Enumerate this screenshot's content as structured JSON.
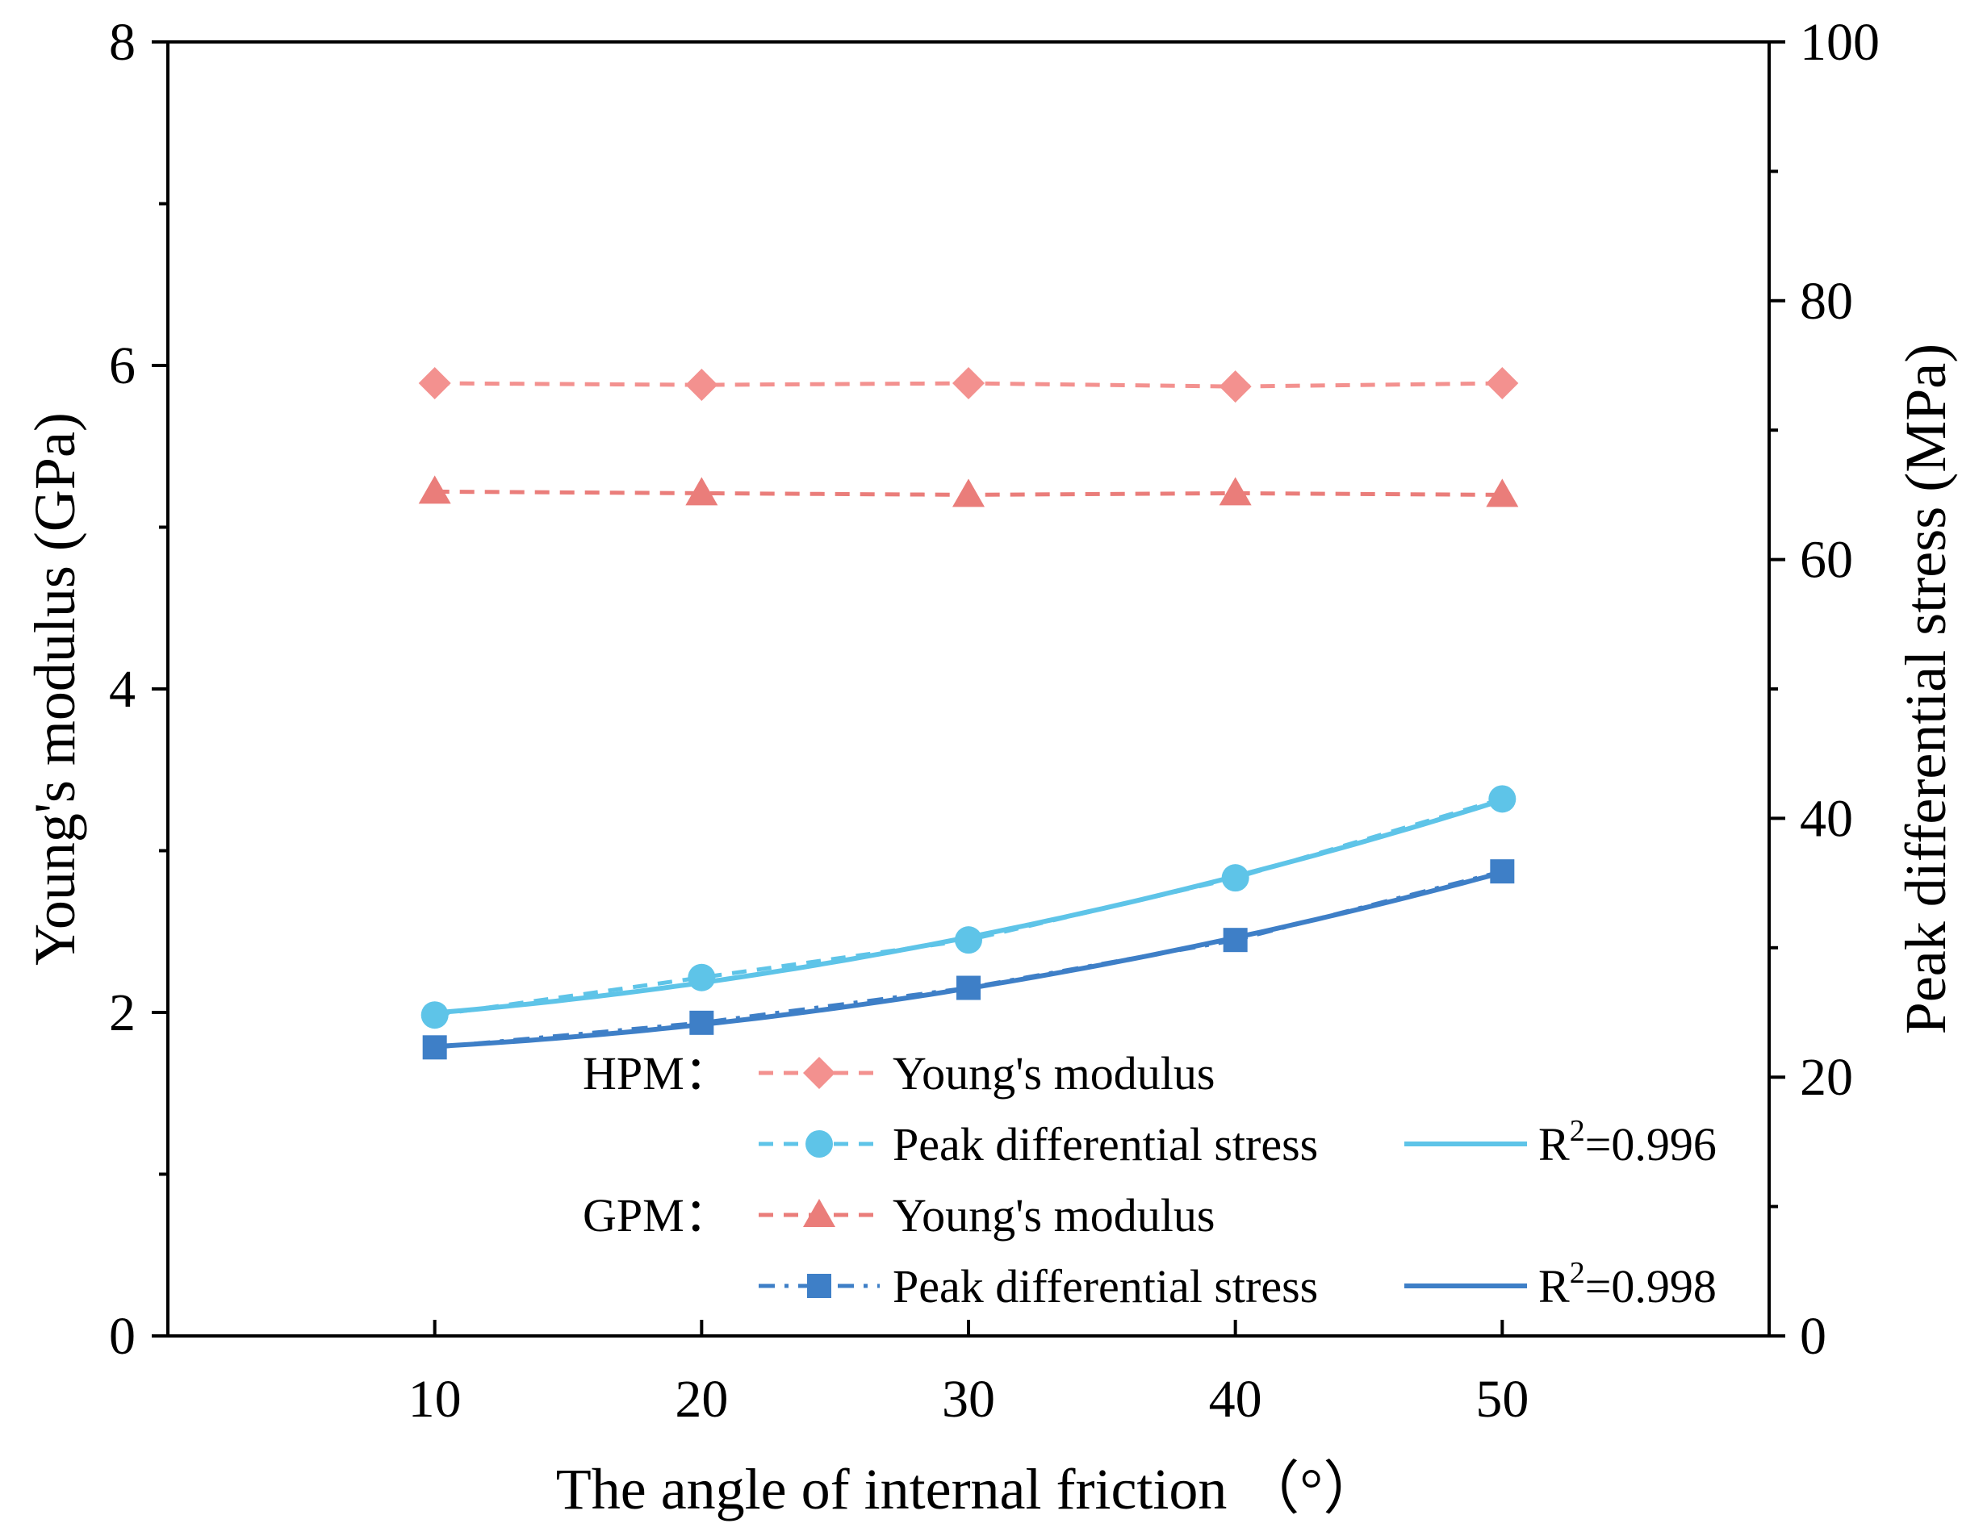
{
  "chart_data": {
    "type": "line",
    "xlabel": "The angle of internal friction （°）",
    "ylabel_left": "Young's modulus (GPa)",
    "ylabel_right": "Peak differential stress (MPa)",
    "x": [
      10,
      20,
      30,
      40,
      50
    ],
    "xticks": [
      "10",
      "20",
      "30",
      "40",
      "50"
    ],
    "xlim": [
      0,
      60
    ],
    "ylim_left": [
      0,
      8
    ],
    "ylim_right": [
      0,
      100
    ],
    "yticks_left": [
      "0",
      "2",
      "4",
      "6",
      "8"
    ],
    "yticks_right": [
      "0",
      "20",
      "40",
      "60",
      "80",
      "100"
    ],
    "grid": false,
    "legend_position": "bottom-right",
    "series": [
      {
        "group": "HPM：",
        "name": "Young's modulus",
        "axis": "left",
        "marker": "diamond",
        "line": "dashed",
        "color": "#f3918f",
        "values": [
          5.89,
          5.88,
          5.89,
          5.87,
          5.89
        ]
      },
      {
        "group": "",
        "name": "Peak differential stress",
        "axis": "right",
        "marker": "circle",
        "line": "dashed",
        "color": "#5ec4e8",
        "values": [
          24.8,
          27.7,
          30.6,
          35.4,
          41.5
        ],
        "fit_label_base": "R",
        "fit_label_exp": "2",
        "fit_label_value": "=0.996"
      },
      {
        "group": "GPM：",
        "name": "Young's modulus",
        "axis": "left",
        "marker": "triangle",
        "line": "dashed",
        "color": "#ea7d7a",
        "values": [
          5.22,
          5.21,
          5.2,
          5.21,
          5.2
        ]
      },
      {
        "group": "",
        "name": "Peak differential stress",
        "axis": "right",
        "marker": "square",
        "line": "dashdot",
        "color": "#3e7fc7",
        "values": [
          22.3,
          24.2,
          26.9,
          30.6,
          35.9
        ],
        "fit_label_base": "R",
        "fit_label_exp": "2",
        "fit_label_value": "=0.998"
      }
    ]
  }
}
